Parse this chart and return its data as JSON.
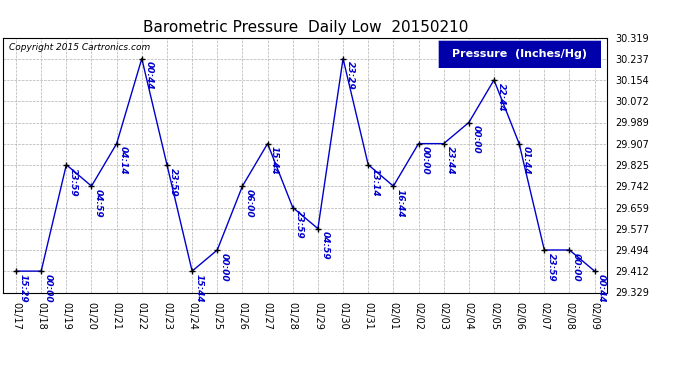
{
  "title": "Barometric Pressure  Daily Low  20150210",
  "copyright": "Copyright 2015 Cartronics.com",
  "legend_label": "Pressure  (Inches/Hg)",
  "background_color": "#ffffff",
  "plot_bg_color": "#ffffff",
  "line_color": "#0000cc",
  "marker_color": "#000000",
  "grid_color": "#b0b0b0",
  "x_labels": [
    "01/17",
    "01/18",
    "01/19",
    "01/20",
    "01/21",
    "01/22",
    "01/23",
    "01/24",
    "01/25",
    "01/26",
    "01/27",
    "01/28",
    "01/29",
    "01/30",
    "01/31",
    "02/01",
    "02/02",
    "02/03",
    "02/04",
    "02/05",
    "02/06",
    "02/07",
    "02/08",
    "02/09"
  ],
  "y_values": [
    29.412,
    29.412,
    29.825,
    29.742,
    29.907,
    30.237,
    29.825,
    29.412,
    29.494,
    29.742,
    29.907,
    29.659,
    29.577,
    30.237,
    29.825,
    29.742,
    29.907,
    29.907,
    29.989,
    30.154,
    29.907,
    29.494,
    29.494,
    29.412
  ],
  "point_labels": [
    "15:29",
    "00:00",
    "23:59",
    "04:59",
    "04:14",
    "00:44",
    "23:59",
    "15:44",
    "00:00",
    "06:00",
    "15:44",
    "23:59",
    "04:59",
    "23:29",
    "13:14",
    "16:44",
    "00:00",
    "23:44",
    "00:00",
    "22:44",
    "01:44",
    "23:59",
    "00:00",
    "00:44"
  ],
  "ylim_min": 29.329,
  "ylim_max": 30.319,
  "yticks": [
    29.329,
    29.412,
    29.494,
    29.577,
    29.659,
    29.742,
    29.825,
    29.907,
    29.989,
    30.072,
    30.154,
    30.237,
    30.319
  ],
  "title_fontsize": 11,
  "tick_fontsize": 7,
  "label_fontsize": 6.5,
  "legend_fontsize": 8
}
